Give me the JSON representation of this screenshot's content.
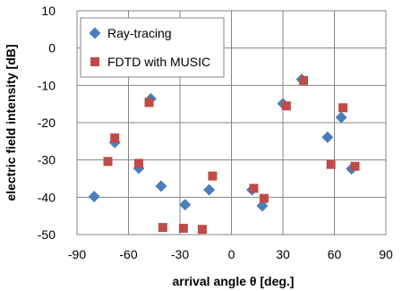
{
  "chart_data": {
    "type": "scatter",
    "xlabel": "arrival angle θ [deg.]",
    "ylabel": "electric field intensity [dB]",
    "xlim": [
      -90,
      90
    ],
    "ylim": [
      -50,
      10
    ],
    "xticks": [
      -90,
      -60,
      -30,
      0,
      30,
      60,
      90
    ],
    "yticks": [
      10,
      0,
      -10,
      -20,
      -30,
      -40,
      -50
    ],
    "grid": true,
    "legend_position": "top-left",
    "series": [
      {
        "name": "Ray-tracing",
        "marker": "diamond",
        "color": "#4a7ebb",
        "points": [
          {
            "x": -80,
            "y": -39.8
          },
          {
            "x": -68,
            "y": -25.3
          },
          {
            "x": -54,
            "y": -32.2
          },
          {
            "x": -47,
            "y": -13.6
          },
          {
            "x": -41,
            "y": -37.0
          },
          {
            "x": -27,
            "y": -42.0
          },
          {
            "x": -13,
            "y": -38.0
          },
          {
            "x": 12,
            "y": -38.0
          },
          {
            "x": 18,
            "y": -42.3
          },
          {
            "x": 30,
            "y": -14.9
          },
          {
            "x": 41,
            "y": -8.4
          },
          {
            "x": 56,
            "y": -23.9
          },
          {
            "x": 64,
            "y": -18.6
          },
          {
            "x": 70,
            "y": -32.4
          }
        ]
      },
      {
        "name": "FDTD with MUSIC",
        "marker": "square",
        "color": "#be4b48",
        "points": [
          {
            "x": -72,
            "y": -30.4
          },
          {
            "x": -68,
            "y": -24.1
          },
          {
            "x": -54,
            "y": -30.9
          },
          {
            "x": -48,
            "y": -14.6
          },
          {
            "x": -40,
            "y": -48.1
          },
          {
            "x": -28,
            "y": -48.3
          },
          {
            "x": -17,
            "y": -48.6
          },
          {
            "x": -11,
            "y": -34.3
          },
          {
            "x": 13,
            "y": -37.6
          },
          {
            "x": 19,
            "y": -40.3
          },
          {
            "x": 32,
            "y": -15.5
          },
          {
            "x": 42,
            "y": -8.7
          },
          {
            "x": 58,
            "y": -31.2
          },
          {
            "x": 65,
            "y": -16.0
          },
          {
            "x": 72,
            "y": -31.7
          }
        ]
      }
    ]
  }
}
